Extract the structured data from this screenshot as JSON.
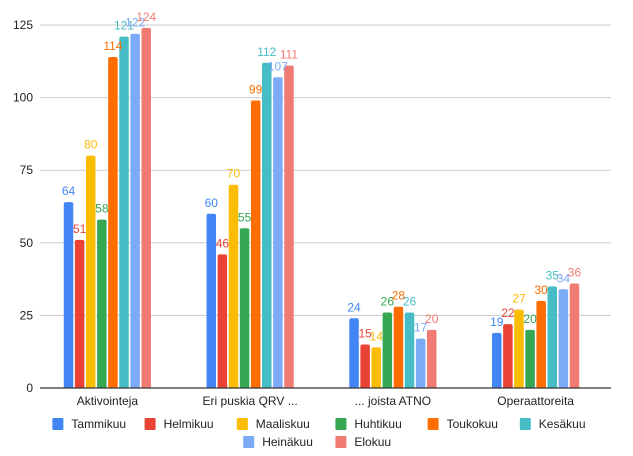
{
  "chart_data": {
    "type": "bar",
    "title": "",
    "xlabel": "",
    "ylabel": "",
    "ylim": [
      0,
      125
    ],
    "yticks": [
      0,
      25,
      50,
      75,
      100,
      125
    ],
    "grid": true,
    "legend_position": "bottom",
    "categories": [
      "Aktivointeja",
      "Eri puskia QRV ...",
      "... joista ATNO",
      "Operaattoreita"
    ],
    "series": [
      {
        "name": "Tammikuu",
        "color": "#4285F4",
        "values": [
          64,
          60,
          24,
          19
        ]
      },
      {
        "name": "Helmikuu",
        "color": "#EA4335",
        "values": [
          51,
          46,
          15,
          22
        ]
      },
      {
        "name": "Maaliskuu",
        "color": "#FBBC04",
        "values": [
          80,
          70,
          14,
          27
        ]
      },
      {
        "name": "Huhtikuu",
        "color": "#34A853",
        "values": [
          58,
          55,
          26,
          20
        ]
      },
      {
        "name": "Toukokuu",
        "color": "#FF6D01",
        "values": [
          114,
          99,
          28,
          30
        ]
      },
      {
        "name": "Kesäkuu",
        "color": "#46BDC6",
        "values": [
          121,
          112,
          26,
          35
        ]
      },
      {
        "name": "Heinäkuu",
        "color": "#7BAAF7",
        "values": [
          122,
          107,
          17,
          34
        ]
      },
      {
        "name": "Elokuu",
        "color": "#F07B72",
        "values": [
          124,
          111,
          20,
          36
        ]
      }
    ]
  }
}
